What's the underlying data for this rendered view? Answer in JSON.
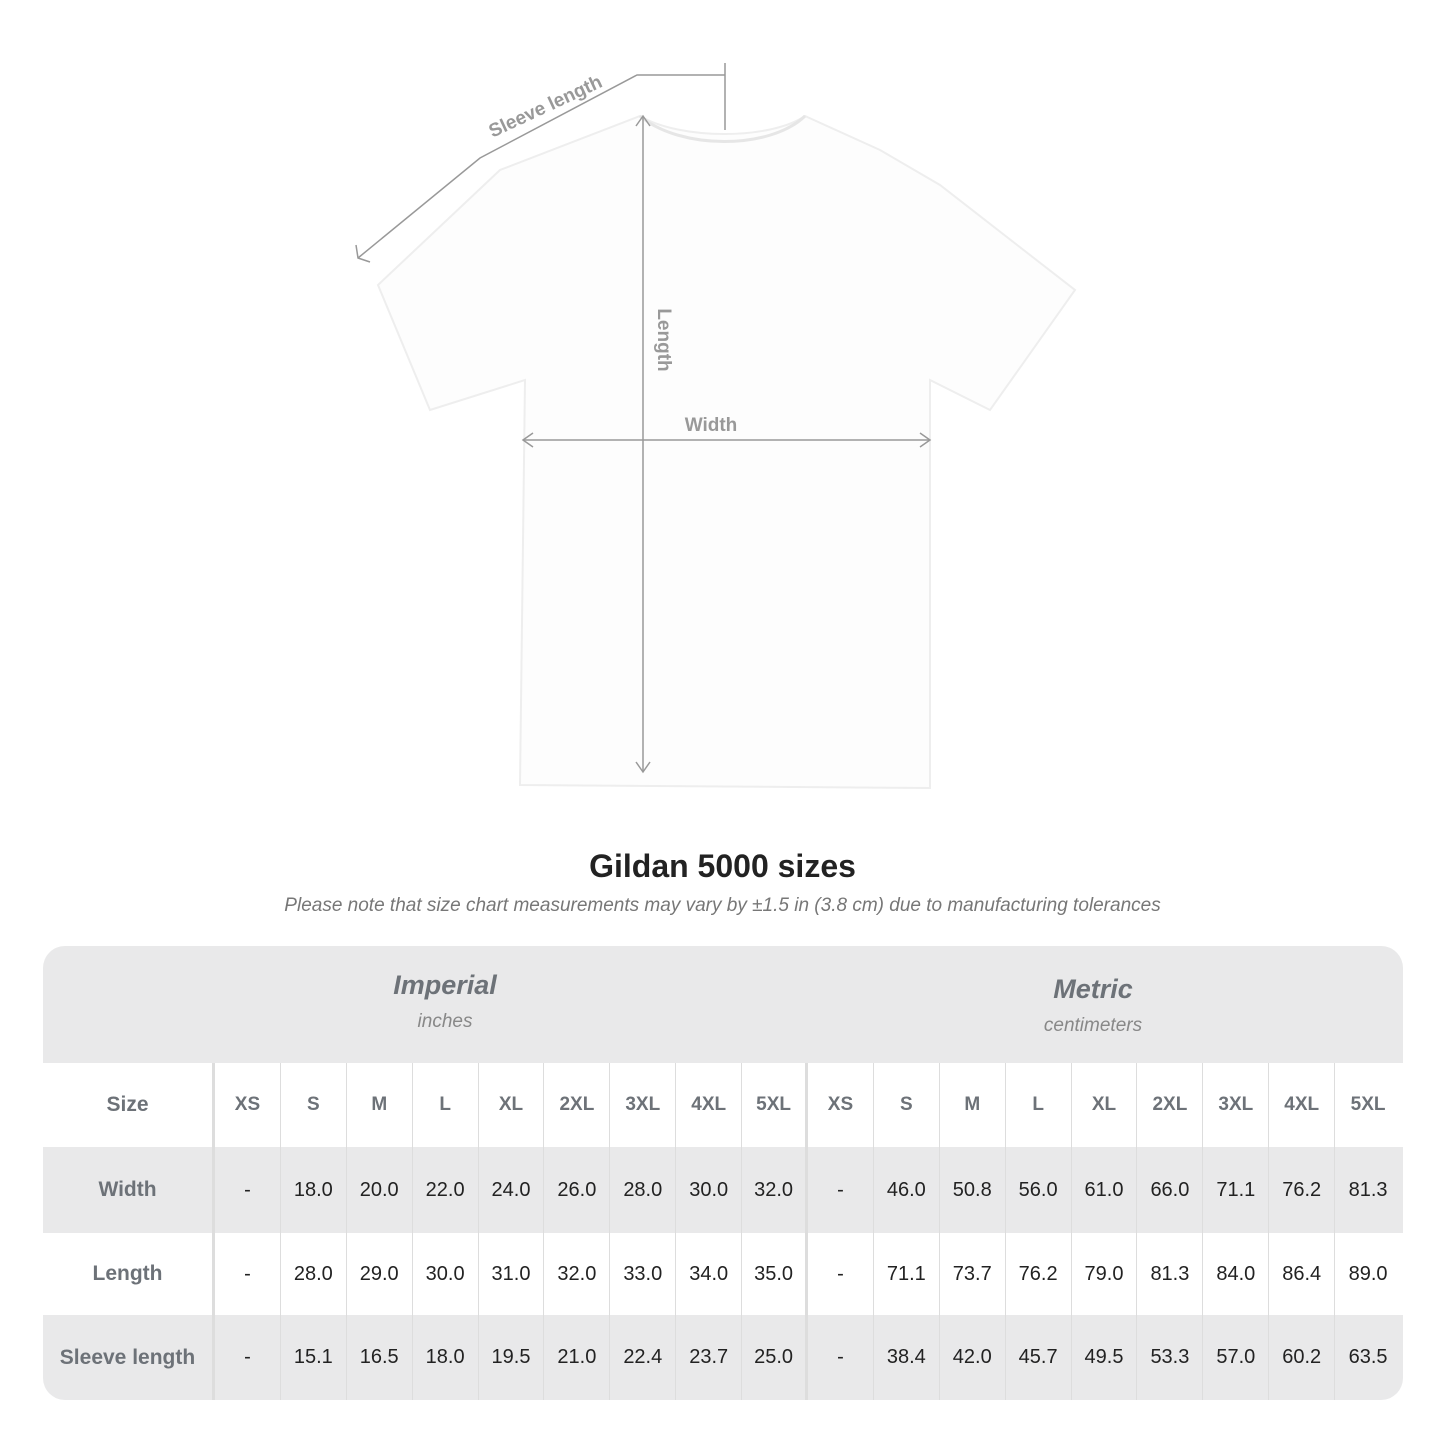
{
  "diagram": {
    "sleeve_label": "Sleeve length",
    "length_label": "Length",
    "width_label": "Width"
  },
  "title": "Gildan 5000 sizes",
  "subtitle": "Please note that size chart measurements may vary by ±1.5 in (3.8 cm) due to manufacturing tolerances",
  "table": {
    "imperial": {
      "name": "Imperial",
      "unit": "inches"
    },
    "metric": {
      "name": "Metric",
      "unit": "centimeters"
    },
    "size_label": "Size",
    "sizes": [
      "XS",
      "S",
      "M",
      "L",
      "XL",
      "2XL",
      "3XL",
      "4XL",
      "5XL"
    ],
    "rows": [
      {
        "label": "Width",
        "imperial": [
          "-",
          "18.0",
          "20.0",
          "22.0",
          "24.0",
          "26.0",
          "28.0",
          "30.0",
          "32.0"
        ],
        "metric": [
          "-",
          "46.0",
          "50.8",
          "56.0",
          "61.0",
          "66.0",
          "71.1",
          "76.2",
          "81.3"
        ]
      },
      {
        "label": "Length",
        "imperial": [
          "-",
          "28.0",
          "29.0",
          "30.0",
          "31.0",
          "32.0",
          "33.0",
          "34.0",
          "35.0"
        ],
        "metric": [
          "-",
          "71.1",
          "73.7",
          "76.2",
          "79.0",
          "81.3",
          "84.0",
          "86.4",
          "89.0"
        ]
      },
      {
        "label": "Sleeve length",
        "imperial": [
          "-",
          "15.1",
          "16.5",
          "18.0",
          "19.5",
          "21.0",
          "22.4",
          "23.7",
          "25.0"
        ],
        "metric": [
          "-",
          "38.4",
          "42.0",
          "45.7",
          "49.5",
          "53.3",
          "57.0",
          "60.2",
          "63.5"
        ]
      }
    ]
  },
  "colors": {
    "band": "#e9e9ea",
    "label": "#6d7278",
    "annotation": "#999999"
  }
}
